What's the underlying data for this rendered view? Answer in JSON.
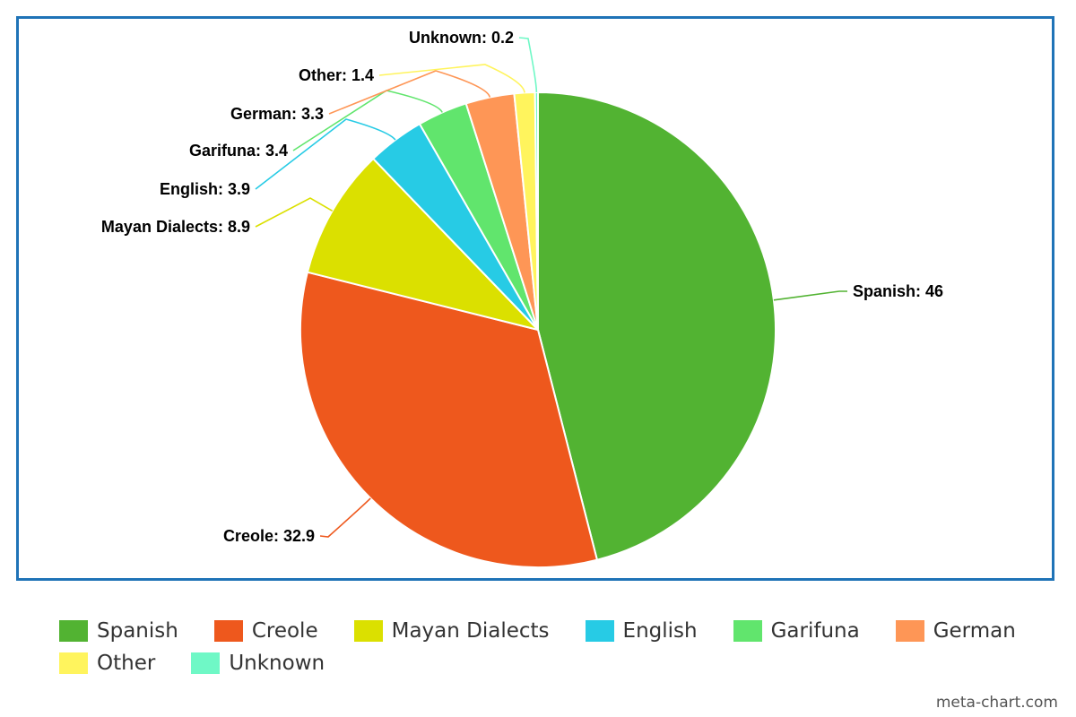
{
  "chart_data": {
    "type": "pie",
    "title": "",
    "legend_position": "bottom",
    "slices": [
      {
        "label": "Spanish",
        "value": 46,
        "color": "#52b332",
        "data_label": "Spanish: 46"
      },
      {
        "label": "Creole",
        "value": 32.9,
        "color": "#ee581d",
        "data_label": "Creole: 32.9"
      },
      {
        "label": "Mayan Dialects",
        "value": 8.9,
        "color": "#dbe000",
        "data_label": "Mayan Dialects: 8.9"
      },
      {
        "label": "English",
        "value": 3.9,
        "color": "#27cbe5",
        "data_label": "English: 3.9"
      },
      {
        "label": "Garifuna",
        "value": 3.4,
        "color": "#61e56d",
        "data_label": "Garifuna: 3.4"
      },
      {
        "label": "German",
        "value": 3.3,
        "color": "#fe9656",
        "data_label": "German: 3.3"
      },
      {
        "label": "Other",
        "value": 1.4,
        "color": "#fff45d",
        "data_label": "Other: 1.4"
      },
      {
        "label": "Unknown",
        "value": 0.2,
        "color": "#6ff8c6",
        "data_label": "Unknown: 0.2"
      }
    ]
  },
  "watermark": "meta-chart.com"
}
